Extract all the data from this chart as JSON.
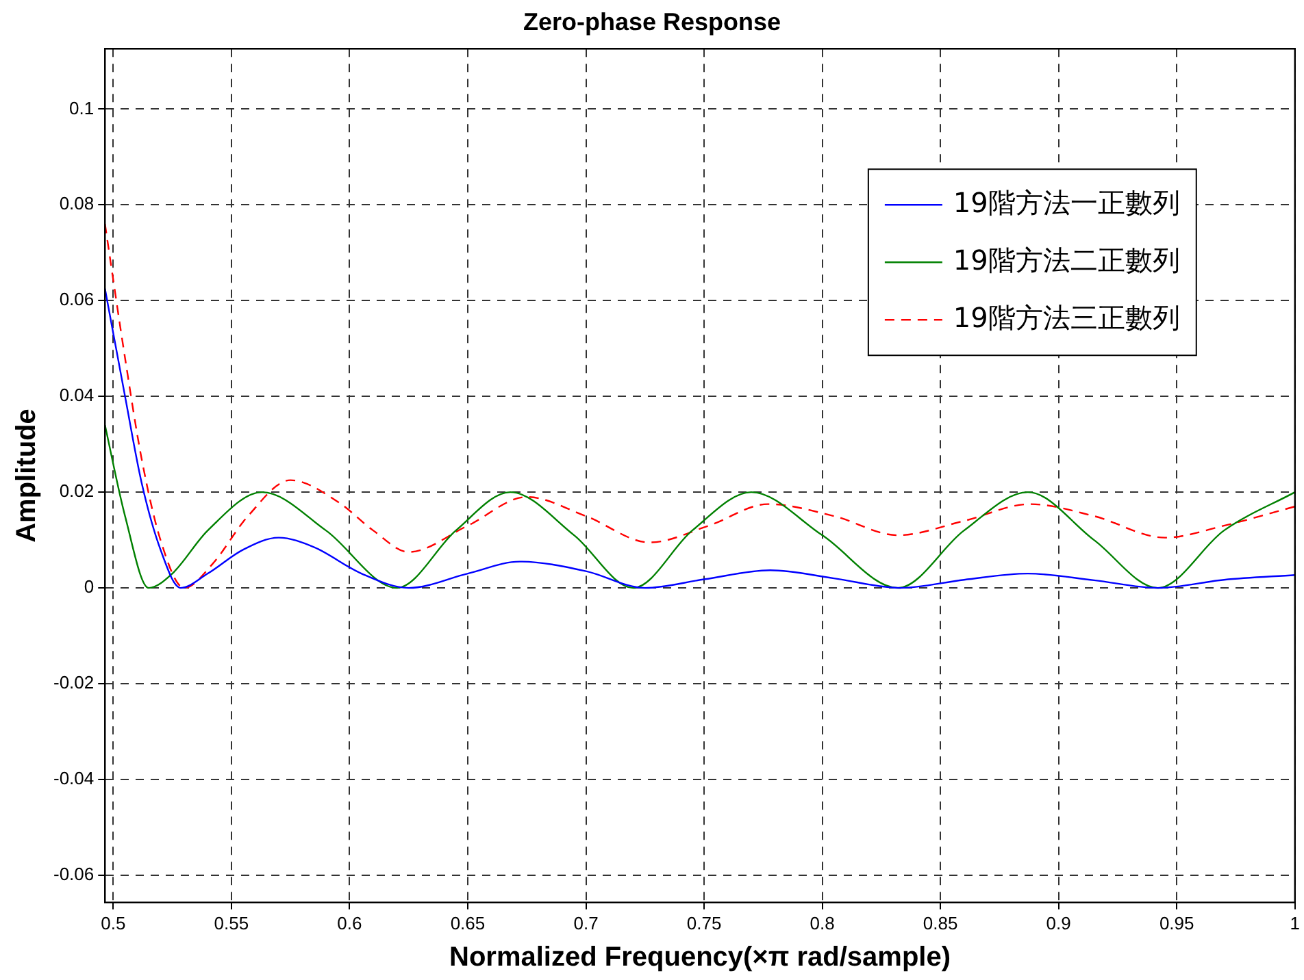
{
  "chart_data": {
    "type": "line",
    "title": "Zero-phase Response",
    "xlabel": "Normalized Frequency(×π rad/sample)",
    "ylabel": "Amplitude",
    "xlim": [
      0.4965,
      1.0
    ],
    "ylim": [
      -0.0657,
      0.1126
    ],
    "xticks": [
      0.5,
      0.55,
      0.6,
      0.65,
      0.7,
      0.75,
      0.8,
      0.85,
      0.9,
      0.95,
      1
    ],
    "yticks": [
      -0.06,
      -0.04,
      -0.02,
      0,
      0.02,
      0.04,
      0.06,
      0.08,
      0.1
    ],
    "grid": true,
    "legend": "top right",
    "series": [
      {
        "name": "19階方法一正數列",
        "color": "#0000ff",
        "line_style": "solid",
        "x": [
          0.4965,
          0.505,
          0.512,
          0.52,
          0.5285,
          0.54,
          0.555,
          0.57,
          0.585,
          0.605,
          0.625,
          0.65,
          0.672,
          0.7,
          0.725,
          0.75,
          0.778,
          0.805,
          0.833,
          0.86,
          0.887,
          0.915,
          0.942,
          0.97,
          1.0
        ],
        "values": [
          0.0625,
          0.04,
          0.022,
          0.008,
          0,
          0.003,
          0.008,
          0.0105,
          0.0085,
          0.003,
          0,
          0.003,
          0.0055,
          0.0035,
          0,
          0.0018,
          0.0037,
          0.002,
          0,
          0.0017,
          0.003,
          0.0016,
          0,
          0.0017,
          0.0027
        ]
      },
      {
        "name": "19階方法二正數列",
        "color": "#008000",
        "line_style": "solid",
        "x": [
          0.4965,
          0.505,
          0.515,
          0.525,
          0.54,
          0.563,
          0.59,
          0.62,
          0.645,
          0.668,
          0.695,
          0.72,
          0.745,
          0.77,
          0.8,
          0.832,
          0.86,
          0.887,
          0.915,
          0.942,
          0.97,
          1.0
        ],
        "values": [
          0.034,
          0.015,
          0,
          0.003,
          0.012,
          0.02,
          0.012,
          0,
          0.012,
          0.02,
          0.011,
          0,
          0.012,
          0.02,
          0.011,
          0,
          0.012,
          0.02,
          0.01,
          0,
          0.012,
          0.02
        ]
      },
      {
        "name": "19階方法三正數列",
        "color": "#ff0000",
        "line_style": "dashed",
        "x": [
          0.4965,
          0.505,
          0.512,
          0.52,
          0.53,
          0.542,
          0.557,
          0.575,
          0.595,
          0.61,
          0.625,
          0.65,
          0.675,
          0.7,
          0.727,
          0.752,
          0.777,
          0.805,
          0.832,
          0.86,
          0.888,
          0.915,
          0.945,
          0.97,
          1.0
        ],
        "values": [
          0.076,
          0.048,
          0.027,
          0.01,
          0,
          0.005,
          0.015,
          0.0225,
          0.018,
          0.012,
          0.0075,
          0.013,
          0.019,
          0.015,
          0.0095,
          0.013,
          0.0175,
          0.015,
          0.011,
          0.014,
          0.0175,
          0.015,
          0.0105,
          0.013,
          0.017
        ]
      }
    ]
  }
}
